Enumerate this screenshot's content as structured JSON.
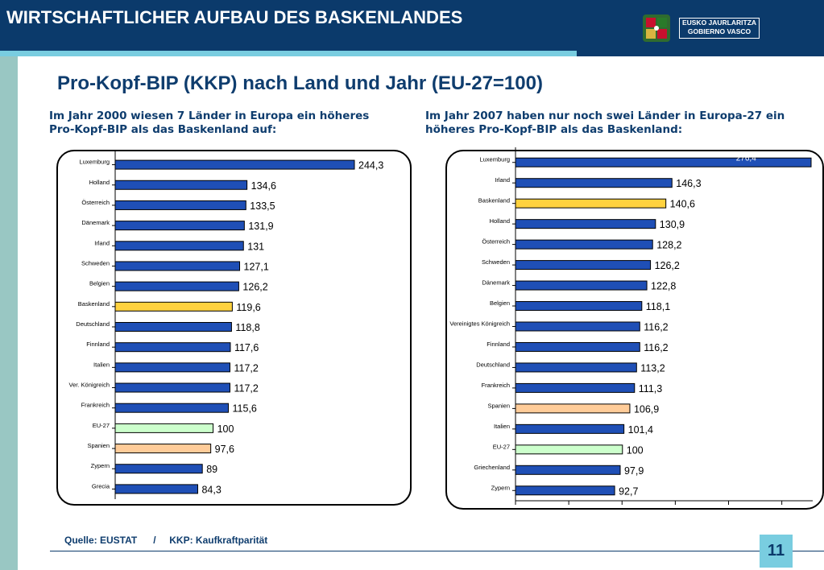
{
  "header": {
    "title": "WIRTSCHAFTLICHER AUFBAU DES BASKENLANDES",
    "gov_line1": "EUSKO JAURLARITZA",
    "gov_line2": "GOBIERNO VASCO"
  },
  "main_title": "Pro-Kopf-BIP (KKP) nach Land und Jahr (EU-27=100)",
  "captions": {
    "left": "Im Jahr 2000 wiesen 7 Länder in Europa ein höheres Pro-Kopf-BIP als das Baskenland auf:",
    "right": "Im Jahr 2007 haben nur noch swei Länder in Europa-27 ein höheres Pro-Kopf-BIP als das Baskenland:"
  },
  "footer": {
    "source": "Quelle: EUSTAT      /     KKP: Kaufkraftparität",
    "page_number": "11"
  },
  "colors": {
    "default_bar": "#1f4fb6",
    "basque_bar": "#ffd23f",
    "eu_bar": "#ccffcc",
    "spain_bar": "#ffcc99"
  },
  "chart_data": [
    {
      "type": "bar",
      "orientation": "horizontal",
      "categories": [
        "Luxemburg",
        "Holland",
        "Österreich",
        "Dänemark",
        "Irland",
        "Schweden",
        "Belgien",
        "Baskenland",
        "Deutschland",
        "Finnland",
        "Italien",
        "Ver. Königreich",
        "Frankreich",
        "EU-27",
        "Spanien",
        "Zypern",
        "Grecia"
      ],
      "values": [
        244.3,
        134.6,
        133.5,
        131.9,
        131,
        127.1,
        126.2,
        119.6,
        118.8,
        117.6,
        117.2,
        117.2,
        115.6,
        100,
        97.6,
        89,
        84.3
      ],
      "value_labels": [
        "244,3",
        "134,6",
        "133,5",
        "131,9",
        "131",
        "127,1",
        "126,2",
        "119,6",
        "118,8",
        "117,6",
        "117,2",
        "117,2",
        "115,6",
        "100",
        "97,6",
        "89",
        "84,3"
      ],
      "highlight": {
        "Baskenland": "basque",
        "EU-27": "eu",
        "Spanien": "spain"
      }
    },
    {
      "type": "bar",
      "orientation": "horizontal",
      "categories": [
        "Luxemburg",
        "Irland",
        "Baskenland",
        "Holland",
        "Österreich",
        "Schweden",
        "Dänemark",
        "Belgien",
        "Vereinigtes Königreich",
        "Finnland",
        "Deutschland",
        "Frankreich",
        "Spanien",
        "Italien",
        "EU-27",
        "Griechenland",
        "Zypern"
      ],
      "values": [
        276.4,
        146.3,
        140.6,
        130.9,
        128.2,
        126.2,
        122.8,
        118.1,
        116.2,
        116.2,
        113.2,
        111.3,
        106.9,
        101.4,
        100,
        97.9,
        92.7
      ],
      "value_labels": [
        "276,4",
        "146,3",
        "140,6",
        "130,9",
        "128,2",
        "126,2",
        "122,8",
        "118,1",
        "116,2",
        "116,2",
        "113,2",
        "111,3",
        "106,9",
        "101,4",
        "100",
        "97,9",
        "92,7"
      ],
      "highlight": {
        "Baskenland": "basque",
        "EU-27": "eu",
        "Spanien": "spain"
      }
    }
  ]
}
